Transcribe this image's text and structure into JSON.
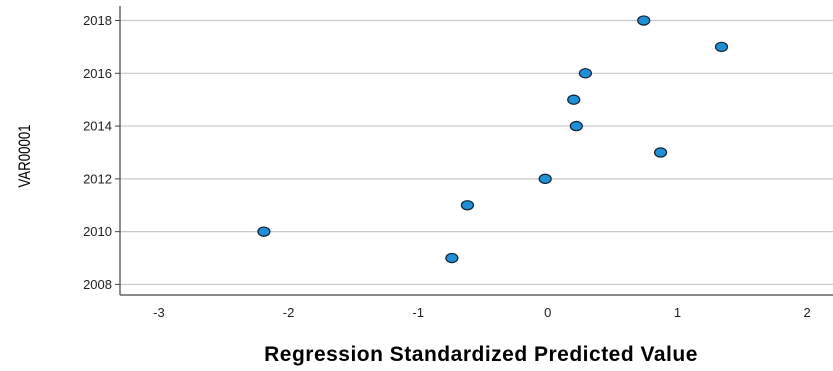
{
  "chart_data": {
    "type": "scatter",
    "title": "",
    "xlabel": "Regression Standardized Predicted Value",
    "ylabel": "VAR00001",
    "xlim": [
      -3.3,
      2.2
    ],
    "ylim": [
      2007.6,
      2018.55
    ],
    "xticks": [
      -3,
      -2,
      -1,
      0,
      1,
      2
    ],
    "yticks": [
      2008,
      2010,
      2012,
      2014,
      2016,
      2018
    ],
    "grid": "horizontal",
    "legend": "none",
    "points": [
      {
        "x": -0.74,
        "y": 2009
      },
      {
        "x": -2.19,
        "y": 2010
      },
      {
        "x": -0.62,
        "y": 2011
      },
      {
        "x": -0.02,
        "y": 2012
      },
      {
        "x": 0.87,
        "y": 2013
      },
      {
        "x": 0.22,
        "y": 2014
      },
      {
        "x": 0.2,
        "y": 2015
      },
      {
        "x": 0.29,
        "y": 2016
      },
      {
        "x": 1.34,
        "y": 2017
      },
      {
        "x": 0.74,
        "y": 2018
      }
    ],
    "colors": {
      "marker_fill": "#1f8fd6",
      "marker_stroke": "#0d1f33",
      "gridline": "#c8c8c8",
      "axis": "#444444"
    }
  }
}
